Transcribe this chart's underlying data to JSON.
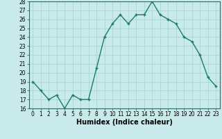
{
  "x": [
    0,
    1,
    2,
    3,
    4,
    5,
    6,
    7,
    8,
    9,
    10,
    11,
    12,
    13,
    14,
    15,
    16,
    17,
    18,
    19,
    20,
    21,
    22,
    23
  ],
  "y": [
    19,
    18,
    17,
    17.5,
    16,
    17.5,
    17,
    17,
    20.5,
    24,
    25.5,
    26.5,
    25.5,
    26.5,
    26.5,
    28,
    26.5,
    26,
    25.5,
    24,
    23.5,
    22,
    19.5,
    18.5
  ],
  "line_color": "#1a7a6a",
  "marker_color": "#1a7a6a",
  "bg_color": "#c8eaea",
  "grid_color": "#b0d8d8",
  "xlabel": "Humidex (Indice chaleur)",
  "ylim": [
    16,
    28
  ],
  "xlim": [
    -0.5,
    23.5
  ],
  "yticks": [
    16,
    17,
    18,
    19,
    20,
    21,
    22,
    23,
    24,
    25,
    26,
    27,
    28
  ],
  "xticks": [
    0,
    1,
    2,
    3,
    4,
    5,
    6,
    7,
    8,
    9,
    10,
    11,
    12,
    13,
    14,
    15,
    16,
    17,
    18,
    19,
    20,
    21,
    22,
    23
  ],
  "tick_fontsize": 5.5,
  "xlabel_fontsize": 7
}
